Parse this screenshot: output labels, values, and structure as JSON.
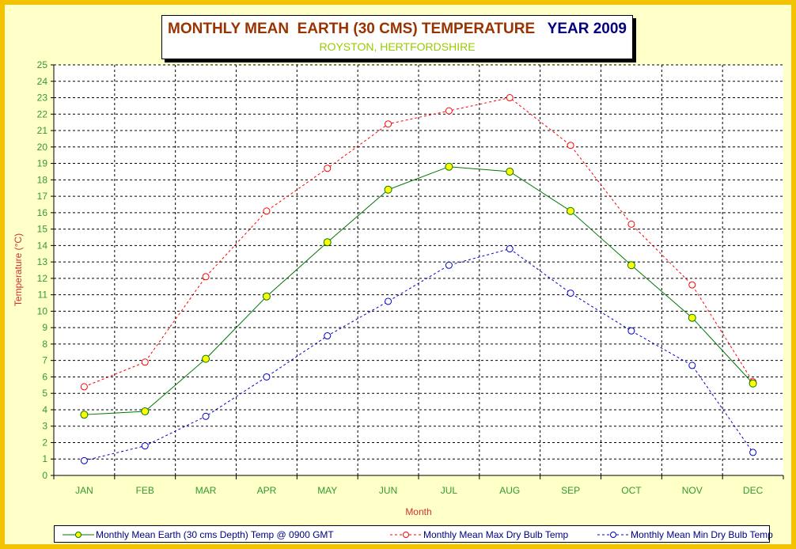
{
  "title": {
    "main": "MONTHLY MEAN  EARTH (30 CMS) TEMPERATURE",
    "year": "YEAR 2009",
    "subtitle": "ROYSTON, HERTFORDSHIRE"
  },
  "colors": {
    "frame": "#f2c200",
    "background": "#ffffc8",
    "title_main": "#993300",
    "title_year": "#000080",
    "subtitle": "#99cc00",
    "axis_title": "#cc3333",
    "tick_label": "#339933"
  },
  "chart_data": {
    "type": "line",
    "xlabel": "Month",
    "ylabel": "Temperature (°C)",
    "ylim": [
      0,
      25
    ],
    "yticks": [
      0,
      1,
      2,
      3,
      4,
      5,
      6,
      7,
      8,
      9,
      10,
      11,
      12,
      13,
      14,
      15,
      16,
      17,
      18,
      19,
      20,
      21,
      22,
      23,
      24,
      25
    ],
    "grid": true,
    "legend_position": "bottom",
    "categories": [
      "JAN",
      "FEB",
      "MAR",
      "APR",
      "MAY",
      "JUN",
      "JUL",
      "AUG",
      "SEP",
      "OCT",
      "NOV",
      "DEC"
    ],
    "series": [
      {
        "name": "Monthly Mean Earth (30 cms Depth) Temp @ 0900 GMT",
        "color": "#007700",
        "marker": "filled-yellow-circle",
        "line_style": "solid",
        "values": [
          3.7,
          3.9,
          7.1,
          10.9,
          14.2,
          17.4,
          18.8,
          18.5,
          16.1,
          12.8,
          9.6,
          5.6
        ]
      },
      {
        "name": "Monthly Mean Max Dry Bulb Temp",
        "color": "#ff0000",
        "marker": "hollow-circle",
        "line_style": "dashed",
        "values": [
          5.4,
          6.9,
          12.1,
          16.1,
          18.7,
          21.4,
          22.2,
          23.0,
          20.1,
          15.3,
          11.6,
          5.7
        ]
      },
      {
        "name": "Monthly Mean Min Dry Bulb Temp",
        "color": "#0000cc",
        "marker": "hollow-circle",
        "line_style": "dashed",
        "values": [
          0.9,
          1.8,
          3.6,
          6.0,
          8.5,
          10.6,
          12.8,
          13.8,
          11.1,
          8.8,
          6.7,
          1.4
        ]
      }
    ]
  }
}
